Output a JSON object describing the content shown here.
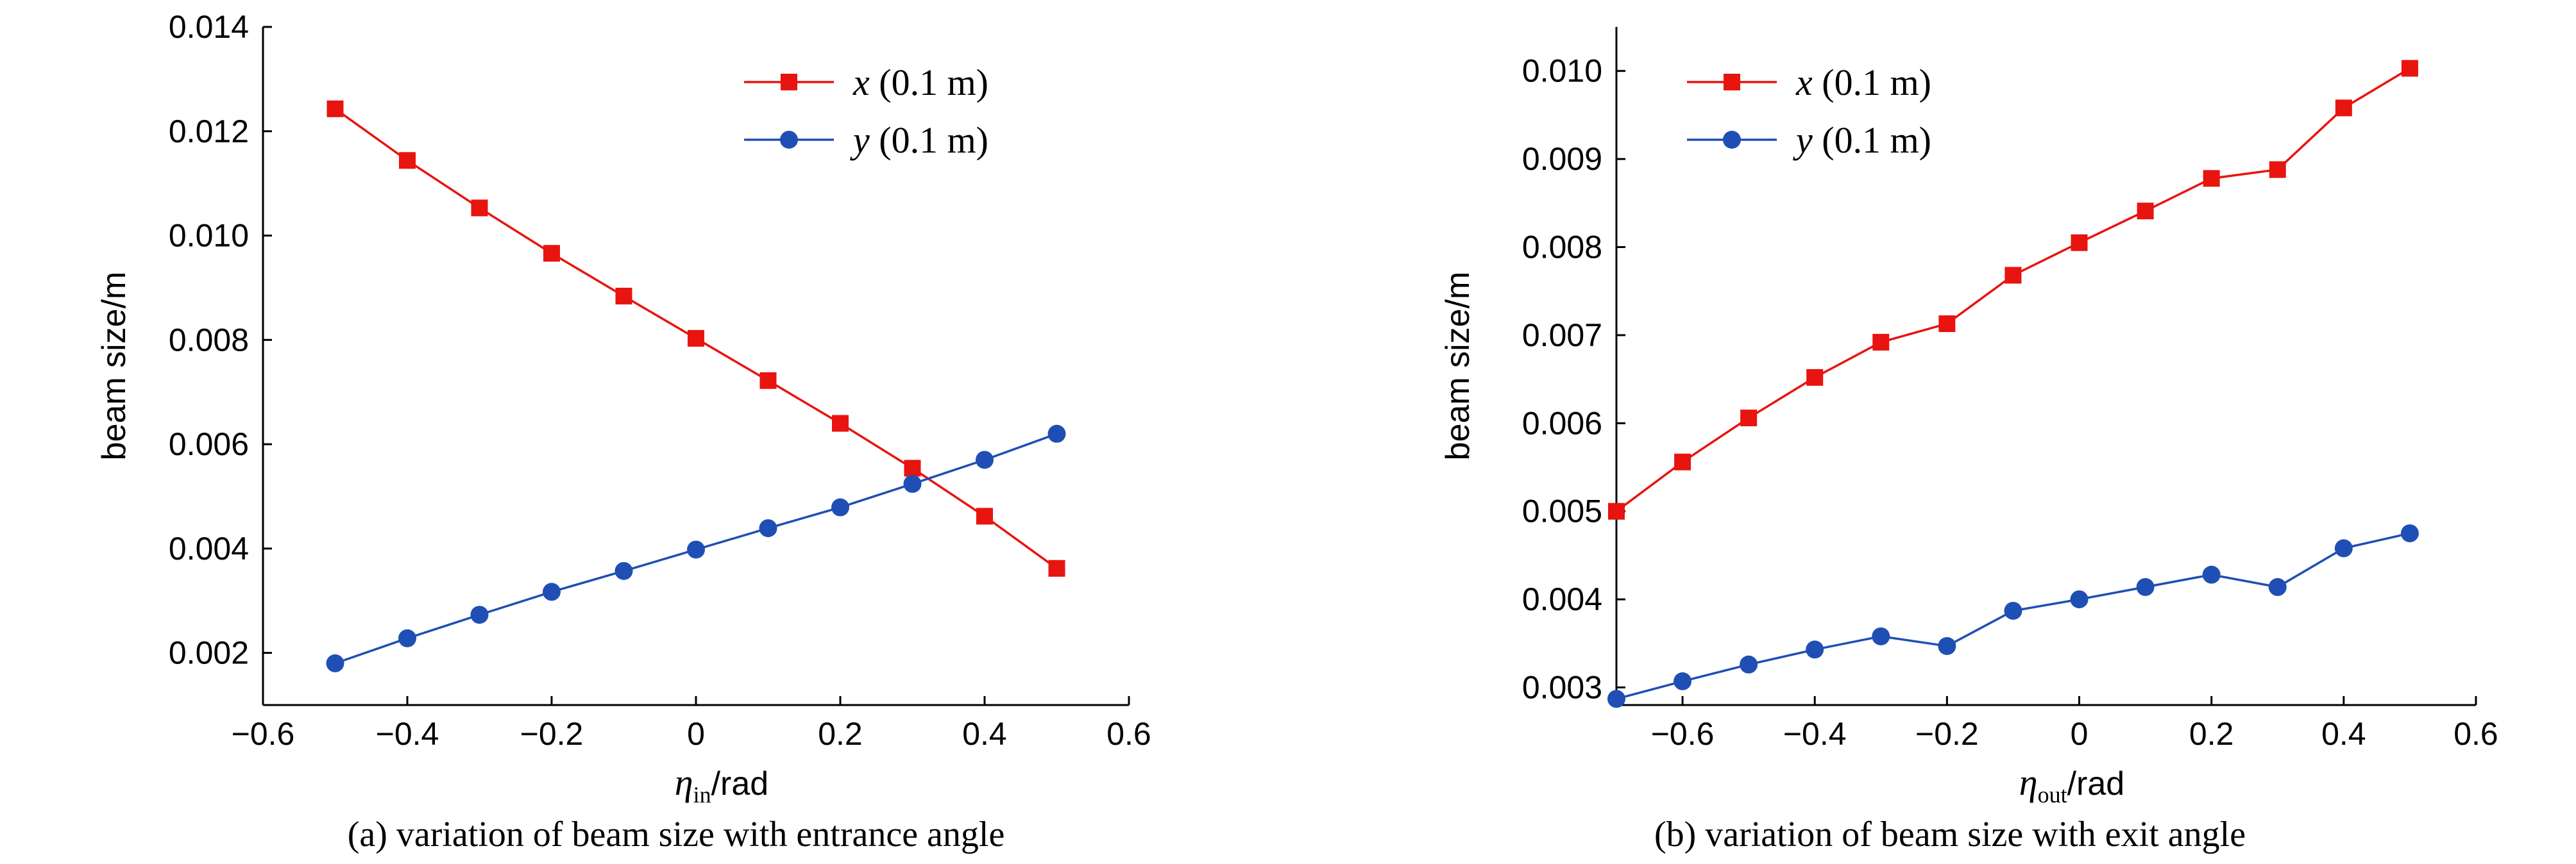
{
  "chart_data": [
    {
      "type": "line",
      "ylabel": "beam size/m",
      "xlabel_symbol": "η",
      "xlabel_subscript": "in",
      "xlabel_unit": "/rad",
      "caption": "(a) variation of beam size with entrance angle",
      "xlim": [
        -0.6,
        0.6
      ],
      "ylim": [
        0.001,
        0.014
      ],
      "xticks": [
        -0.6,
        -0.4,
        -0.2,
        0,
        0.2,
        0.4,
        0.6
      ],
      "xtick_labels": [
        "−0.6",
        "−0.4",
        "−0.2",
        "0",
        "0.2",
        "0.4",
        "0.6"
      ],
      "yticks": [
        0.002,
        0.004,
        0.006,
        0.008,
        0.01,
        0.012,
        0.014
      ],
      "ytick_labels": [
        "0.002",
        "0.004",
        "0.006",
        "0.008",
        "0.010",
        "0.012",
        "0.014"
      ],
      "legend_position": "top-right",
      "x": [
        -0.5,
        -0.4,
        -0.3,
        -0.2,
        -0.1,
        0,
        0.1,
        0.2,
        0.3,
        0.4,
        0.5
      ],
      "series": [
        {
          "name": "x (0.1 m)",
          "name_var": "x",
          "name_rest": " (0.1 m)",
          "color": "#e8140f",
          "marker": "square",
          "values": [
            0.01243,
            0.01144,
            0.01053,
            0.00966,
            0.00884,
            0.00803,
            0.00722,
            0.0064,
            0.00554,
            0.00462,
            0.00362
          ]
        },
        {
          "name": "y (0.1 m)",
          "name_var": "y",
          "name_rest": " (0.1 m)",
          "color": "#1f4fb4",
          "marker": "circle",
          "values": [
            0.0018,
            0.00228,
            0.00273,
            0.00317,
            0.00357,
            0.00398,
            0.00439,
            0.00479,
            0.00524,
            0.0057,
            0.0062
          ]
        }
      ]
    },
    {
      "type": "line",
      "ylabel": "beam size/m",
      "xlabel_symbol": "η",
      "xlabel_subscript": "out",
      "xlabel_unit": "/rad",
      "caption": "(b) variation of beam size with exit angle",
      "xlim": [
        -0.7,
        0.6
      ],
      "ylim": [
        0.0028,
        0.0105
      ],
      "xticks": [
        -0.6,
        -0.4,
        -0.2,
        0,
        0.2,
        0.4,
        0.6
      ],
      "xtick_labels": [
        "−0.6",
        "−0.4",
        "−0.2",
        "0",
        "0.2",
        "0.4",
        "0.6"
      ],
      "yticks": [
        0.003,
        0.004,
        0.005,
        0.006,
        0.007,
        0.008,
        0.009,
        0.01
      ],
      "ytick_labels": [
        "0.003",
        "0.004",
        "0.005",
        "0.006",
        "0.007",
        "0.008",
        "0.009",
        "0.010"
      ],
      "legend_position": "top-left",
      "x": [
        -0.7,
        -0.6,
        -0.5,
        -0.4,
        -0.3,
        -0.2,
        -0.1,
        0,
        0.1,
        0.2,
        0.3,
        0.4,
        0.5
      ],
      "series": [
        {
          "name": "x (0.1 m)",
          "name_var": "x",
          "name_rest": " (0.1 m)",
          "color": "#e8140f",
          "marker": "square",
          "values": [
            0.005,
            0.00556,
            0.00606,
            0.00652,
            0.00692,
            0.00713,
            0.00768,
            0.00805,
            0.00841,
            0.00878,
            0.00888,
            0.00958,
            0.01003
          ]
        },
        {
          "name": "y (0.1 m)",
          "name_var": "y",
          "name_rest": " (0.1 m)",
          "color": "#1f4fb4",
          "marker": "circle",
          "values": [
            0.00287,
            0.00307,
            0.00326,
            0.00343,
            0.00358,
            0.00347,
            0.00387,
            0.004,
            0.00414,
            0.00428,
            0.00414,
            0.00458,
            0.00475
          ]
        }
      ]
    }
  ]
}
